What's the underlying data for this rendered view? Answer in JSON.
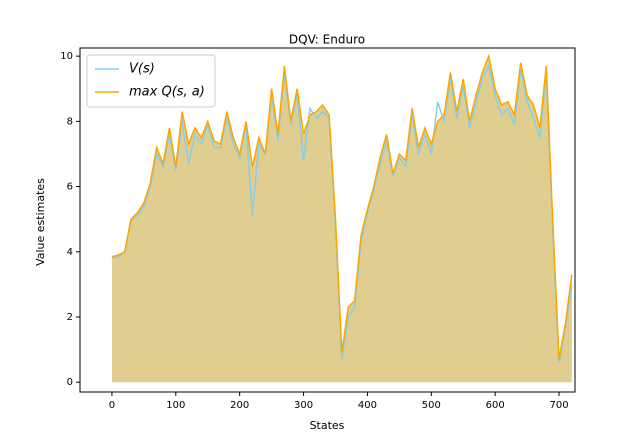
{
  "chart_data": {
    "type": "line",
    "title": "DQV: Enduro",
    "x_label": "States",
    "y_label": "Value estimates",
    "x": [
      0,
      10,
      20,
      30,
      40,
      50,
      60,
      70,
      80,
      90,
      100,
      110,
      120,
      130,
      140,
      150,
      160,
      170,
      180,
      190,
      200,
      210,
      220,
      230,
      240,
      250,
      260,
      270,
      280,
      290,
      300,
      310,
      320,
      330,
      340,
      350,
      360,
      370,
      380,
      390,
      400,
      410,
      420,
      430,
      440,
      450,
      460,
      470,
      480,
      490,
      500,
      510,
      520,
      530,
      540,
      550,
      560,
      570,
      580,
      590,
      600,
      610,
      620,
      630,
      640,
      650,
      660,
      670,
      680,
      690,
      700,
      710,
      720
    ],
    "series": [
      {
        "name": "V(s)",
        "color": "#87ceeb",
        "values": [
          3.8,
          3.85,
          4.0,
          5.0,
          5.1,
          5.4,
          6.0,
          7.0,
          6.6,
          7.6,
          6.5,
          8.0,
          6.7,
          7.6,
          7.3,
          7.9,
          7.2,
          7.2,
          8.1,
          7.3,
          6.9,
          7.9,
          5.1,
          7.3,
          7.0,
          8.8,
          7.4,
          9.5,
          7.9,
          8.8,
          6.8,
          8.4,
          8.1,
          8.3,
          8.1,
          4.8,
          0.7,
          2.0,
          2.3,
          4.3,
          5.2,
          5.9,
          6.7,
          7.4,
          6.3,
          6.9,
          6.6,
          8.2,
          7.0,
          7.6,
          7.0,
          8.6,
          8.0,
          9.3,
          8.1,
          9.1,
          7.8,
          8.6,
          9.3,
          9.7,
          8.8,
          8.2,
          8.4,
          7.9,
          9.6,
          8.6,
          8.1,
          7.5,
          9.5,
          4.8,
          0.6,
          1.7,
          3.0
        ]
      },
      {
        "name": "max Q(s, a)",
        "color": "#ffa500",
        "values": [
          3.85,
          3.9,
          4.0,
          5.0,
          5.2,
          5.5,
          6.1,
          7.2,
          6.7,
          7.8,
          6.6,
          8.3,
          7.3,
          7.8,
          7.5,
          8.0,
          7.4,
          7.3,
          8.3,
          7.5,
          7.0,
          8.0,
          6.6,
          7.5,
          7.0,
          9.0,
          7.6,
          9.7,
          8.0,
          9.0,
          7.6,
          8.2,
          8.3,
          8.5,
          8.2,
          5.0,
          0.9,
          2.3,
          2.5,
          4.5,
          5.3,
          6.0,
          6.9,
          7.6,
          6.4,
          7.0,
          6.8,
          8.4,
          7.2,
          7.8,
          7.3,
          8.0,
          8.2,
          9.5,
          8.3,
          9.3,
          8.0,
          8.8,
          9.5,
          10.0,
          9.0,
          8.5,
          8.6,
          8.2,
          9.8,
          8.8,
          8.5,
          7.8,
          9.7,
          5.0,
          0.7,
          1.8,
          3.3
        ]
      }
    ],
    "fill_color": "#e0cd90",
    "xlim": [
      -50,
      725
    ],
    "ylim": [
      -0.3,
      10.25
    ],
    "xticks": [
      0,
      100,
      200,
      300,
      400,
      500,
      600,
      700
    ],
    "yticks": [
      0,
      2,
      4,
      6,
      8,
      10
    ],
    "legend": "upper left"
  }
}
